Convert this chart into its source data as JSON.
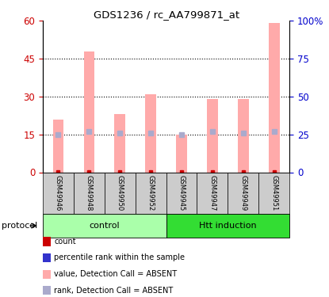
{
  "title": "GDS1236 / rc_AA799871_at",
  "samples": [
    "GSM49946",
    "GSM49948",
    "GSM49950",
    "GSM49952",
    "GSM49945",
    "GSM49947",
    "GSM49949",
    "GSM49951"
  ],
  "bar_values": [
    21,
    48,
    23,
    31,
    15,
    29,
    29,
    59
  ],
  "rank_values": [
    25,
    27,
    26,
    26,
    25,
    27,
    26,
    27
  ],
  "bar_color_absent": "#FFAAAA",
  "rank_color_absent": "#AAAACC",
  "count_color": "#CC0000",
  "rank_dot_color": "#3333AA",
  "left_ylim": [
    0,
    60
  ],
  "right_ylim": [
    0,
    100
  ],
  "left_yticks": [
    0,
    15,
    30,
    45,
    60
  ],
  "right_yticks": [
    0,
    25,
    50,
    75,
    100
  ],
  "right_yticklabels": [
    "0",
    "25",
    "50",
    "75",
    "100%"
  ],
  "left_ytick_color": "#CC0000",
  "right_ytick_color": "#0000CC",
  "dotted_lines": [
    15,
    30,
    45
  ],
  "group_bar_bg": "#CCCCCC",
  "group_info": [
    {
      "label": "control",
      "start": 0,
      "end": 3,
      "color": "#AAFFAA"
    },
    {
      "label": "Htt induction",
      "start": 4,
      "end": 7,
      "color": "#33DD33"
    }
  ],
  "legend_items": [
    {
      "color": "#CC0000",
      "label": "count"
    },
    {
      "color": "#3333CC",
      "label": "percentile rank within the sample"
    },
    {
      "color": "#FFAAAA",
      "label": "value, Detection Call = ABSENT"
    },
    {
      "color": "#AAAACC",
      "label": "rank, Detection Call = ABSENT"
    }
  ],
  "protocol_label": "protocol",
  "bar_width": 0.35,
  "figsize": [
    4.15,
    3.75
  ],
  "dpi": 100
}
